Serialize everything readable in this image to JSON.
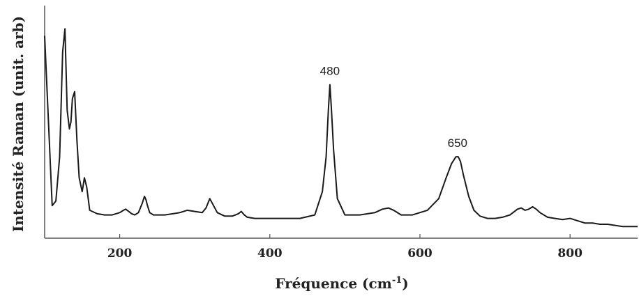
{
  "chart_data": {
    "type": "line",
    "xlabel": "Fréquence (cm",
    "xlabel_sup": "-1",
    "xlabel_close": ")",
    "ylabel": "Intensité Raman (unit. arb)",
    "xlim": [
      100,
      890
    ],
    "ylim": [
      0,
      1
    ],
    "x_ticks": [
      {
        "value": 200,
        "label": "200"
      },
      {
        "value": 400,
        "label": "400"
      },
      {
        "value": 600,
        "label": "600"
      },
      {
        "value": 800,
        "label": "800"
      }
    ],
    "grid": false,
    "legend": "none",
    "line_color": "#1a1a1a",
    "annotations": [
      {
        "x": 480,
        "y": 0.66,
        "text": "480"
      },
      {
        "x": 650,
        "y": 0.35,
        "text": "650"
      }
    ],
    "series": [
      {
        "x": [
          100,
          110,
          115,
          120,
          124,
          127,
          130,
          133,
          135,
          137,
          140,
          143,
          146,
          150,
          153,
          156,
          160,
          170,
          180,
          190,
          200,
          205,
          208,
          212,
          216,
          220,
          225,
          230,
          233,
          235,
          237,
          240,
          245,
          260,
          280,
          290,
          300,
          310,
          315,
          320,
          325,
          330,
          340,
          350,
          358,
          362,
          366,
          370,
          380,
          390,
          400,
          420,
          440,
          460,
          470,
          475,
          478,
          480,
          482,
          485,
          490,
          500,
          520,
          540,
          550,
          558,
          565,
          575,
          590,
          610,
          625,
          635,
          642,
          648,
          651,
          654,
          658,
          665,
          672,
          680,
          690,
          700,
          710,
          720,
          730,
          735,
          740,
          745,
          750,
          755,
          760,
          770,
          780,
          790,
          800,
          810,
          820,
          830,
          840,
          850,
          860,
          870,
          880,
          890
        ],
        "y": [
          0.87,
          0.14,
          0.16,
          0.35,
          0.8,
          0.9,
          0.55,
          0.47,
          0.5,
          0.6,
          0.63,
          0.42,
          0.26,
          0.2,
          0.26,
          0.22,
          0.12,
          0.105,
          0.1,
          0.1,
          0.11,
          0.12,
          0.125,
          0.115,
          0.105,
          0.1,
          0.11,
          0.15,
          0.18,
          0.165,
          0.14,
          0.11,
          0.1,
          0.1,
          0.11,
          0.12,
          0.115,
          0.11,
          0.13,
          0.17,
          0.14,
          0.11,
          0.095,
          0.095,
          0.105,
          0.115,
          0.1,
          0.09,
          0.085,
          0.085,
          0.085,
          0.085,
          0.085,
          0.1,
          0.2,
          0.35,
          0.55,
          0.66,
          0.56,
          0.38,
          0.17,
          0.1,
          0.1,
          0.11,
          0.125,
          0.13,
          0.12,
          0.1,
          0.1,
          0.12,
          0.17,
          0.26,
          0.32,
          0.35,
          0.35,
          0.33,
          0.27,
          0.18,
          0.12,
          0.095,
          0.085,
          0.085,
          0.09,
          0.1,
          0.125,
          0.13,
          0.12,
          0.125,
          0.135,
          0.125,
          0.11,
          0.09,
          0.085,
          0.08,
          0.085,
          0.075,
          0.065,
          0.065,
          0.06,
          0.06,
          0.055,
          0.05,
          0.05,
          0.05
        ]
      }
    ]
  }
}
